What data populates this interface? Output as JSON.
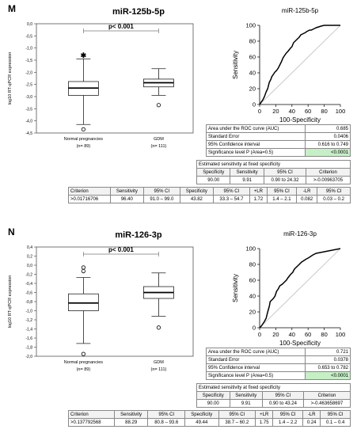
{
  "panels": [
    {
      "letter": "M",
      "title": "miR-125b-5p",
      "chart_data": [
        {
          "type": "box",
          "ylabel": "log10 RT-qPCR expression",
          "ylim": [
            -4.5,
            0.0
          ],
          "yticks": [
            "0,0",
            "-0,5",
            "-1,0",
            "-1,5",
            "-2,0",
            "-2,5",
            "-3,0",
            "-3,5",
            "-4,0",
            "-4,5"
          ],
          "significance": "p< 0.001",
          "groups": [
            {
              "label": "Normal pregnancies",
              "n": "(n= 89)",
              "whisker_low": -4.15,
              "q1": -2.95,
              "median": -2.65,
              "q3": -2.38,
              "whisker_high": -1.45,
              "outliers": [
                -4.35
              ],
              "extremes": [
                -1.3
              ]
            },
            {
              "label": "GDM",
              "n": "(n= 111)",
              "whisker_low": -2.95,
              "q1": -2.6,
              "median": -2.43,
              "q3": -2.28,
              "whisker_high": -1.85,
              "outliers": [
                -3.35
              ],
              "extremes": []
            }
          ]
        },
        {
          "type": "line",
          "title": "miR-125b-5p",
          "xlabel": "100-Specificity",
          "ylabel": "Sensitivity",
          "xlim": [
            0,
            100
          ],
          "ylim": [
            0,
            100
          ],
          "ticks": [
            "0",
            "20",
            "40",
            "60",
            "80",
            "100"
          ],
          "x": [
            0,
            2,
            4,
            6,
            8,
            10,
            12,
            14,
            15,
            17,
            19,
            21,
            23,
            25,
            27,
            29,
            31,
            33,
            35,
            38,
            40,
            42,
            45,
            47,
            49,
            51,
            53,
            55,
            57,
            58,
            60,
            62,
            64,
            66,
            68,
            70,
            73,
            76,
            80,
            85,
            90,
            95,
            100
          ],
          "y": [
            0,
            3,
            6,
            10,
            16,
            20,
            28,
            32,
            35,
            38,
            41,
            43,
            46,
            50,
            54,
            59,
            62,
            65,
            67,
            71,
            73,
            78,
            81,
            83,
            85,
            88,
            89,
            90,
            91,
            92,
            93,
            94,
            94,
            95,
            96,
            97,
            98,
            99,
            100,
            100,
            100,
            100,
            100
          ]
        }
      ],
      "auc_table": [
        [
          "Area under the ROC curve (AUC)",
          "0.685"
        ],
        [
          "Standard Error",
          "0.0406"
        ],
        [
          "95% Confidence interval",
          "0.616 to 0.749"
        ],
        [
          "Significance level P (Area=0.5)",
          "<0.0001"
        ]
      ],
      "est": {
        "title": "Estimated sensitivity at fixed specificity",
        "headers": [
          "Specificity",
          "Sensitivity",
          "95% CI",
          "Criterion"
        ],
        "row": [
          "90.00",
          "9.91",
          "0.90 to 24.32",
          ">-0.00963705"
        ]
      },
      "crit": {
        "headers": [
          "Criterion",
          "Sensitivity",
          "95% CI",
          "Specificity",
          "95% CI",
          "+LR",
          "95% CI",
          "-LR",
          "95% CI"
        ],
        "row": [
          ">0.01716706",
          "96.40",
          "91.0 – 99.0",
          "43.82",
          "33.3 – 54.7",
          "1.72",
          "1.4 – 2.1",
          "0.082",
          "0.03 – 0.2"
        ]
      }
    },
    {
      "letter": "N",
      "title": "miR-126-3p",
      "chart_data": [
        {
          "type": "box",
          "ylabel": "log10 RT-qPCR expression",
          "ylim": [
            -2.0,
            0.4
          ],
          "yticks": [
            "0,4",
            "0,2",
            "0,0",
            "-0,2",
            "-0,4",
            "-0,6",
            "-0,8",
            "-1,0",
            "-1,2",
            "-1,4",
            "-1,6",
            "-1,8",
            "-2,0"
          ],
          "significance": "p< 0.001",
          "groups": [
            {
              "label": "Normal pregnancies",
              "n": "(n= 89)",
              "whisker_low": -1.72,
              "q1": -1.0,
              "median": -0.83,
              "q3": -0.63,
              "whisker_high": -0.27,
              "outliers": [
                -1.95,
                -0.05,
                -0.13
              ],
              "extremes": []
            },
            {
              "label": "GDM",
              "n": "(n= 111)",
              "whisker_low": -1.12,
              "q1": -0.73,
              "median": -0.6,
              "q3": -0.47,
              "whisker_high": -0.17,
              "outliers": [
                -1.37
              ],
              "extremes": []
            }
          ]
        },
        {
          "type": "line",
          "title": "miR-126-3p",
          "xlabel": "100-Specificity",
          "ylabel": "Sensitivity",
          "xlim": [
            0,
            100
          ],
          "ylim": [
            0,
            100
          ],
          "ticks": [
            "0",
            "20",
            "40",
            "60",
            "80",
            "100"
          ],
          "x": [
            0,
            2,
            4,
            6,
            8,
            10,
            12,
            13,
            14,
            15,
            17,
            19,
            21,
            23,
            25,
            28,
            30,
            33,
            35,
            38,
            41,
            43,
            46,
            49,
            52,
            55,
            58,
            60,
            63,
            66,
            70,
            75,
            80,
            85,
            90,
            95,
            100
          ],
          "y": [
            0,
            2,
            5,
            8,
            12,
            20,
            27,
            33,
            34,
            35,
            37,
            40,
            46,
            49,
            53,
            55,
            57,
            60,
            63,
            67,
            70,
            74,
            77,
            80,
            83,
            85,
            87,
            88,
            90,
            92,
            94,
            95,
            96,
            97,
            98,
            99,
            100
          ]
        }
      ],
      "auc_table": [
        [
          "Area under the ROC curve (AUC)",
          "0.721"
        ],
        [
          "Standard Error",
          "0.0378"
        ],
        [
          "95% Confidence interval",
          "0.653 to 0.782"
        ],
        [
          "Significance level P (Area=0.5)",
          "<0.0001"
        ]
      ],
      "est": {
        "title": "Estimated sensitivity at fixed specificity",
        "headers": [
          "Specificity",
          "Sensitivity",
          "95% CI",
          "Criterion"
        ],
        "row": [
          "90.00",
          "9.91",
          "0.90 to 43.24",
          ">-0.463658697"
        ]
      },
      "crit": {
        "headers": [
          "Criterion",
          "Sensitivity",
          "95% CI",
          "Specificity",
          "95% CI",
          "+LR",
          "95% CI",
          "-LR",
          "95% CI"
        ],
        "row": [
          ">0.137792568",
          "88.29",
          "80.8 – 93.6",
          "49.44",
          "38.7 – 60.2",
          "1.75",
          "1.4 – 2.2",
          "0.24",
          "0.1 – 0.4"
        ]
      }
    }
  ]
}
